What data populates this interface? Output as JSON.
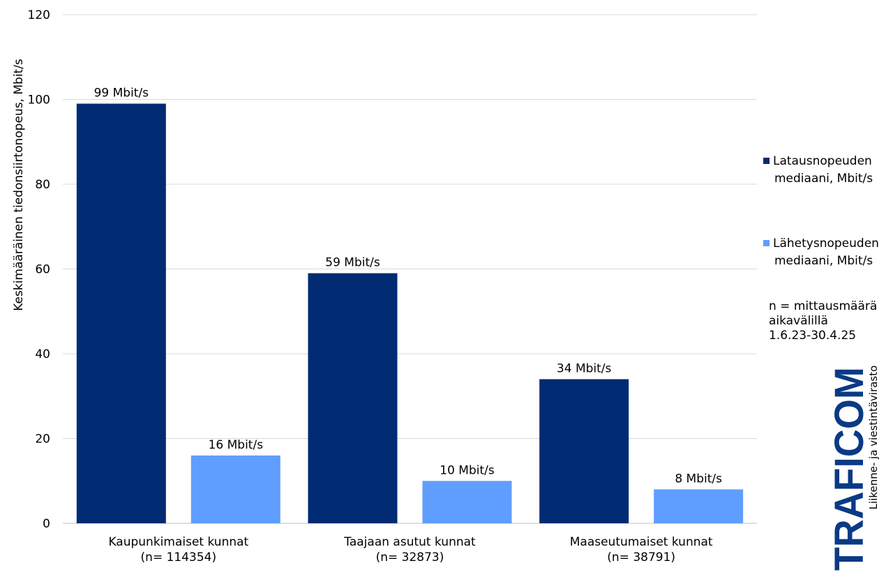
{
  "chart_data": {
    "type": "bar",
    "title": "",
    "xlabel": "",
    "ylabel": "Keskimääräinen tiedonsiirtonopeus, Mbit/s",
    "ylim": [
      0,
      120
    ],
    "yticks": [
      0,
      20,
      40,
      60,
      80,
      100,
      120
    ],
    "grid": true,
    "legend_position": "right",
    "categories": [
      [
        "Kaupunkimaiset kunnat",
        "(n= 114354)"
      ],
      [
        "Taajaan asutut kunnat",
        "(n= 32873)"
      ],
      [
        "Maaseutumaiset kunnat",
        "(n= 38791)"
      ]
    ],
    "series": [
      {
        "name": "Latausnopeuden mediaani, Mbit/s",
        "name_lines": [
          "Latausnopeuden",
          "mediaani, Mbit/s"
        ],
        "color": "#002B73",
        "values": [
          99,
          59,
          34
        ],
        "labels": [
          "99 Mbit/s",
          "59 Mbit/s",
          "34 Mbit/s"
        ]
      },
      {
        "name": "Lähetysnopeuden mediaani, Mbit/s",
        "name_lines": [
          "Lähetysnopeuden",
          "mediaani, Mbit/s"
        ],
        "color": "#5F9EFF",
        "values": [
          16,
          10,
          8
        ],
        "labels": [
          "16 Mbit/s",
          "10 Mbit/s",
          "8 Mbit/s"
        ]
      }
    ],
    "note": [
      "n = mittausmäärä",
      "aikavälillä",
      "1.6.23-30.4.25"
    ]
  },
  "logo": {
    "text": "TRAFICOM",
    "subtitle": "Liikenne- ja viestintävirasto",
    "color": "#0A3A85"
  }
}
